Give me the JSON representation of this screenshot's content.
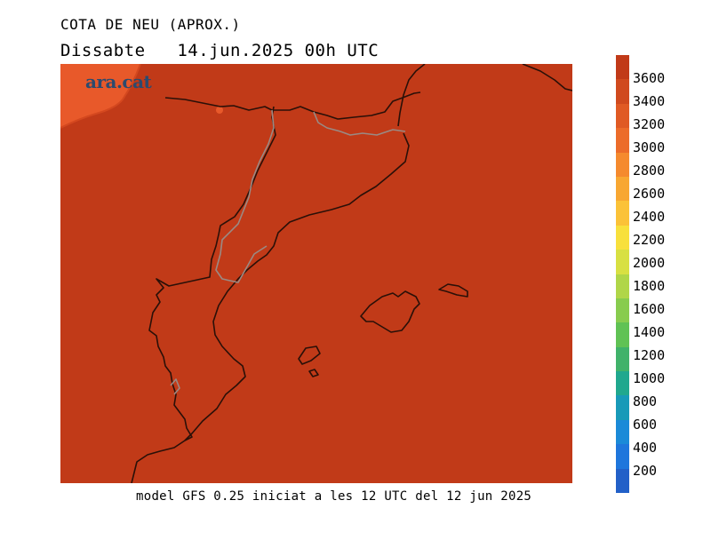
{
  "header": {
    "title": "COTA DE NEU (APROX.)",
    "subtitle": "Dissabte   14.jun.2025 00h UTC"
  },
  "footer": {
    "model_info": "model GFS 0.25 iniciat a les 12 UTC del 12 jun 2025"
  },
  "logo": {
    "text": "ara.cat"
  },
  "map": {
    "fill_color": "#c13a18",
    "high_color": "#e8592a",
    "region": "Catalonia, Valencian Community, Balearic Islands"
  },
  "legend": {
    "labels": [
      "3600",
      "3400",
      "3200",
      "3000",
      "2800",
      "2600",
      "2400",
      "2200",
      "2000",
      "1800",
      "1600",
      "1400",
      "1200",
      "1000",
      "800",
      "600",
      "400",
      "200"
    ],
    "colors": [
      "#c13a18",
      "#d04a1e",
      "#e05a24",
      "#ec6c2a",
      "#f58a2e",
      "#f8a732",
      "#fbc238",
      "#f8e03c",
      "#d8e042",
      "#b0d648",
      "#88cc4e",
      "#60c254",
      "#40b26a",
      "#20a88e",
      "#189ab8",
      "#1a8ad8",
      "#1e76dc",
      "#2260c8"
    ]
  }
}
